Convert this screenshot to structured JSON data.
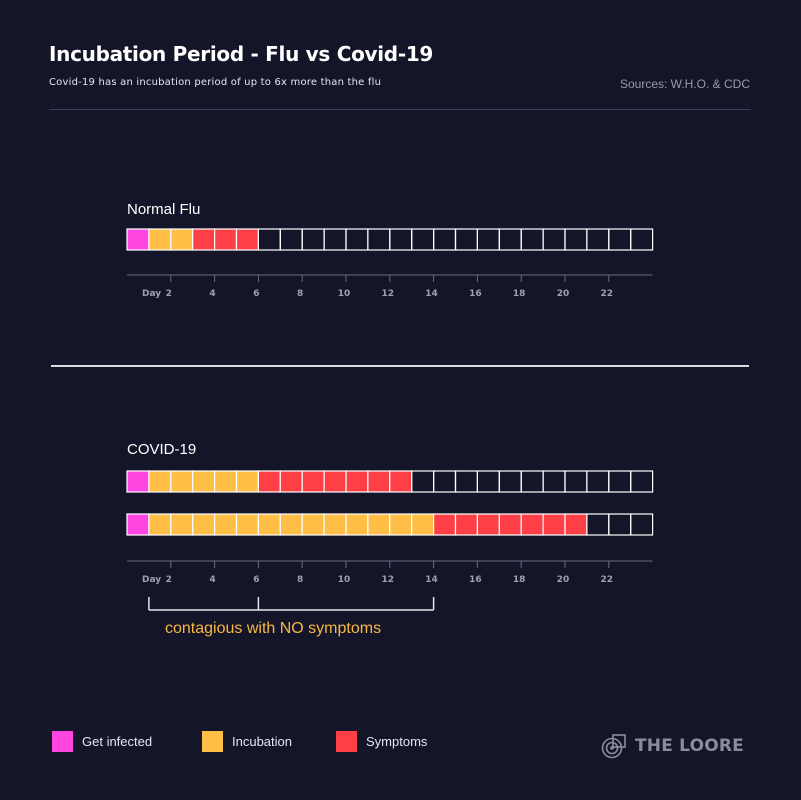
{
  "header": {
    "title": "Incubation Period - Flu vs Covid-19",
    "subtitle": "Covid-19 has an incubation period of up to 6x more than the flu",
    "sources": "Sources: W.H.O. & CDC"
  },
  "colors": {
    "background": "#15152a",
    "infected": "#ff44e0",
    "incubation": "#ffbf47",
    "symptoms": "#ff3f46",
    "empty_border": "#ffffff",
    "axis": "#6b6b80",
    "tick_label": "#a0a0b0",
    "annotation": "#f7b844"
  },
  "chart_data": {
    "type": "table",
    "title": "Incubation Period - Flu vs Covid-19",
    "xlabel": "Day",
    "total_days": 24,
    "tick_prefix": "Day",
    "tick_values": [
      2,
      4,
      6,
      8,
      10,
      12,
      14,
      16,
      18,
      20,
      22
    ],
    "sections": [
      {
        "name": "Normal Flu",
        "rows": [
          {
            "infected_days": 1,
            "incubation_days": 2,
            "symptom_days": 3
          }
        ]
      },
      {
        "name": "COVID-19",
        "rows": [
          {
            "infected_days": 1,
            "incubation_days": 5,
            "symptom_days": 7
          },
          {
            "infected_days": 1,
            "incubation_days": 13,
            "symptom_days": 7
          }
        ],
        "annotation": {
          "text": "contagious with NO symptoms",
          "bracket_days": [
            1,
            6,
            14
          ]
        }
      }
    ]
  },
  "legend": {
    "items": [
      {
        "label": "Get infected",
        "key": "infected"
      },
      {
        "label": "Incubation",
        "key": "incubation"
      },
      {
        "label": "Symptoms",
        "key": "symptoms"
      }
    ]
  },
  "logo": {
    "text": "THE LOORE",
    "icon": "loore-logo-icon"
  }
}
